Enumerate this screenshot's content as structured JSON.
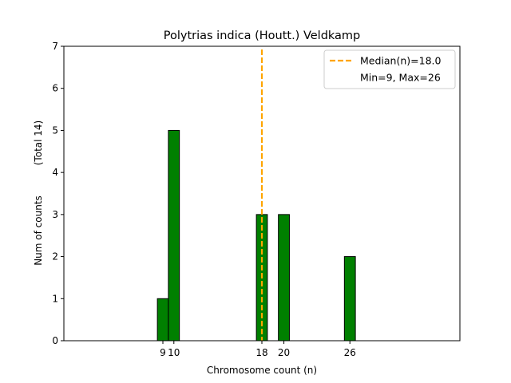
{
  "chart_data": {
    "type": "bar",
    "title": "Polytrias indica (Houtt.) Veldkamp",
    "xlabel": "Chromosome count (n)",
    "ylabel": "Num of counts",
    "ylabel_note": "(Total 14)",
    "x": [
      9,
      10,
      18,
      20,
      26
    ],
    "values": [
      1,
      5,
      3,
      3,
      2
    ],
    "bar_color": "#008000",
    "bar_edge_color": "#000000",
    "xlim": [
      0,
      36
    ],
    "ylim": [
      0,
      7
    ],
    "xticks": [
      9,
      10,
      18,
      20,
      26
    ],
    "xtick_labels": [
      "9",
      "10",
      "18",
      "20",
      "26"
    ],
    "yticks": [
      0,
      1,
      2,
      3,
      4,
      5,
      6,
      7
    ],
    "grid": false,
    "median": {
      "value": 18.0,
      "color": "#ffa500",
      "label": "Median(n)=18.0"
    },
    "range_note": "Min=9, Max=26",
    "legend_position": "top-right"
  }
}
